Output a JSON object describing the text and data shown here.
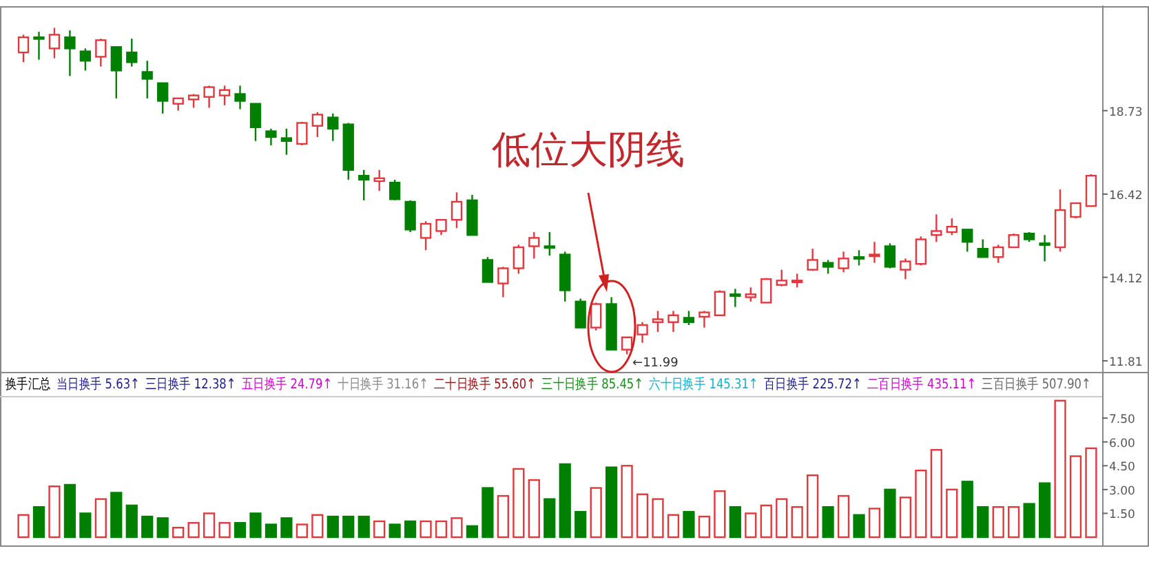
{
  "chart_data": [
    {
      "type": "candlestick",
      "categories": [
        null,
        null,
        null,
        null,
        null,
        null,
        null,
        null,
        null,
        null,
        null,
        null,
        null,
        null,
        null,
        null,
        null,
        null,
        null,
        null,
        null,
        null,
        null,
        null,
        null,
        null,
        null,
        null,
        null,
        null,
        null,
        null,
        null,
        null,
        null,
        null,
        null,
        null,
        null,
        null,
        null,
        null,
        null,
        null,
        null,
        null,
        null,
        null,
        null,
        null,
        null,
        null,
        null,
        null,
        null,
        null,
        null,
        null,
        null,
        null,
        null,
        null,
        null,
        null,
        null,
        null,
        null,
        null,
        null,
        null
      ],
      "ohlc": [
        [
          20.34,
          20.83,
          20.07,
          20.76
        ],
        [
          20.76,
          20.91,
          20.14,
          20.72
        ],
        [
          20.45,
          21.02,
          20.18,
          20.83
        ],
        [
          20.76,
          20.95,
          19.69,
          20.45
        ],
        [
          20.37,
          20.45,
          19.84,
          20.11
        ],
        [
          20.22,
          20.72,
          19.95,
          20.68
        ],
        [
          20.49,
          20.49,
          19.07,
          19.84
        ],
        [
          20.34,
          20.72,
          19.95,
          20.07
        ],
        [
          19.8,
          20.11,
          19.07,
          19.61
        ],
        [
          19.49,
          19.49,
          18.65,
          19.0
        ],
        [
          18.92,
          19.07,
          18.73,
          19.07
        ],
        [
          19.04,
          19.19,
          18.81,
          19.15
        ],
        [
          19.11,
          19.42,
          18.81,
          19.38
        ],
        [
          19.15,
          19.42,
          18.88,
          19.3
        ],
        [
          19.19,
          19.42,
          18.77,
          19.0
        ],
        [
          18.92,
          18.92,
          17.89,
          18.27
        ],
        [
          18.16,
          18.23,
          17.77,
          18.0
        ],
        [
          17.97,
          18.23,
          17.51,
          17.89
        ],
        [
          17.81,
          18.42,
          17.77,
          18.39
        ],
        [
          18.31,
          18.69,
          18.0,
          18.62
        ],
        [
          18.54,
          18.65,
          17.89,
          18.23
        ],
        [
          18.35,
          18.39,
          16.82,
          17.09
        ],
        [
          16.93,
          17.09,
          16.25,
          16.82
        ],
        [
          16.78,
          17.09,
          16.51,
          16.86
        ],
        [
          16.74,
          16.82,
          16.25,
          16.28
        ],
        [
          16.21,
          16.25,
          15.37,
          15.44
        ],
        [
          15.21,
          15.67,
          14.87,
          15.6
        ],
        [
          15.4,
          15.71,
          15.29,
          15.71
        ],
        [
          15.71,
          16.47,
          15.48,
          16.21
        ],
        [
          16.25,
          16.4,
          15.29,
          15.29
        ],
        [
          14.6,
          14.68,
          13.99,
          13.99
        ],
        [
          13.95,
          14.41,
          13.57,
          14.37
        ],
        [
          14.37,
          15.02,
          14.22,
          14.95
        ],
        [
          14.98,
          15.37,
          14.64,
          15.21
        ],
        [
          14.98,
          15.37,
          14.72,
          14.95
        ],
        [
          14.75,
          14.83,
          13.45,
          13.76
        ],
        [
          13.45,
          13.53,
          12.73,
          12.73
        ],
        [
          12.73,
          13.42,
          12.65,
          13.38
        ],
        [
          13.38,
          13.57,
          12.12,
          12.12
        ],
        [
          12.12,
          12.46,
          11.99,
          12.46
        ],
        [
          12.54,
          12.88,
          12.31,
          12.8
        ],
        [
          12.88,
          13.19,
          12.61,
          12.96
        ],
        [
          12.88,
          13.19,
          12.61,
          13.07
        ],
        [
          13.0,
          13.19,
          12.8,
          12.88
        ],
        [
          13.03,
          13.19,
          12.73,
          13.15
        ],
        [
          13.07,
          13.76,
          13.07,
          13.72
        ],
        [
          13.65,
          13.8,
          13.3,
          13.61
        ],
        [
          13.57,
          13.84,
          13.45,
          13.65
        ],
        [
          13.42,
          14.1,
          13.42,
          14.07
        ],
        [
          13.91,
          14.33,
          13.87,
          14.03
        ],
        [
          13.99,
          14.22,
          13.84,
          14.03
        ],
        [
          14.33,
          14.91,
          14.3,
          14.6
        ],
        [
          14.52,
          14.6,
          14.22,
          14.41
        ],
        [
          14.37,
          14.83,
          14.26,
          14.64
        ],
        [
          14.68,
          14.87,
          14.45,
          14.64
        ],
        [
          14.72,
          15.1,
          14.52,
          14.75
        ],
        [
          14.98,
          15.06,
          14.37,
          14.41
        ],
        [
          14.33,
          14.64,
          14.07,
          14.56
        ],
        [
          14.49,
          15.25,
          14.45,
          15.17
        ],
        [
          15.29,
          15.86,
          15.1,
          15.4
        ],
        [
          15.37,
          15.75,
          15.29,
          15.52
        ],
        [
          15.44,
          15.44,
          14.83,
          15.1
        ],
        [
          14.91,
          15.17,
          14.68,
          14.68
        ],
        [
          14.68,
          15.02,
          14.52,
          14.95
        ],
        [
          14.95,
          15.33,
          14.95,
          15.29
        ],
        [
          15.33,
          15.37,
          15.1,
          15.17
        ],
        [
          15.06,
          15.29,
          14.56,
          15.02
        ],
        [
          14.95,
          16.55,
          14.83,
          15.98
        ],
        [
          15.79,
          16.17,
          15.75,
          16.17
        ],
        [
          16.09,
          16.97,
          16.09,
          16.93
        ]
      ],
      "colors": [
        "#e0383c",
        "#008000",
        "#e0383c",
        "#008000",
        "#008000",
        "#e0383c",
        "#008000",
        "#008000",
        "#008000",
        "#008000",
        "#e0383c",
        "#e0383c",
        "#e0383c",
        "#e0383c",
        "#008000",
        "#008000",
        "#008000",
        "#008000",
        "#e0383c",
        "#e0383c",
        "#008000",
        "#008000",
        "#008000",
        "#e0383c",
        "#008000",
        "#008000",
        "#e0383c",
        "#e0383c",
        "#e0383c",
        "#008000",
        "#008000",
        "#e0383c",
        "#e0383c",
        "#e0383c",
        "#008000",
        "#008000",
        "#008000",
        "#e0383c",
        "#008000",
        "#e0383c",
        "#e0383c",
        "#e0383c",
        "#e0383c",
        "#008000",
        "#e0383c",
        "#e0383c",
        "#008000",
        "#e0383c",
        "#e0383c",
        "#e0383c",
        "#e0383c",
        "#e0383c",
        "#008000",
        "#e0383c",
        "#008000",
        "#e0383c",
        "#008000",
        "#e0383c",
        "#e0383c",
        "#e0383c",
        "#e0383c",
        "#008000",
        "#008000",
        "#e0383c",
        "#e0383c",
        "#008000",
        "#008000",
        "#e0383c",
        "#e0383c",
        "#e0383c"
      ],
      "ylim": [
        11.58,
        21.6
      ],
      "yticks": [
        11.81,
        14.12,
        16.42,
        18.73
      ],
      "annotations": [
        "低位大阴线",
        "←11.99"
      ]
    },
    {
      "type": "bar",
      "categories": [
        null,
        null,
        null,
        null,
        null,
        null,
        null,
        null,
        null,
        null,
        null,
        null,
        null,
        null,
        null,
        null,
        null,
        null,
        null,
        null,
        null,
        null,
        null,
        null,
        null,
        null,
        null,
        null,
        null,
        null,
        null,
        null,
        null,
        null,
        null,
        null,
        null,
        null,
        null,
        null,
        null,
        null,
        null,
        null,
        null,
        null,
        null,
        null,
        null,
        null,
        null,
        null,
        null,
        null,
        null,
        null,
        null,
        null,
        null,
        null,
        null,
        null,
        null,
        null,
        null,
        null,
        null,
        null,
        null,
        null
      ],
      "values": [
        1.4,
        1.9,
        3.2,
        3.3,
        1.5,
        2.4,
        2.8,
        2.0,
        1.3,
        1.2,
        0.6,
        0.9,
        1.5,
        0.9,
        0.9,
        1.5,
        0.8,
        1.2,
        0.8,
        1.4,
        1.3,
        1.3,
        1.3,
        1.0,
        0.8,
        1.0,
        1.0,
        1.0,
        1.2,
        0.7,
        3.1,
        2.6,
        4.3,
        3.6,
        2.4,
        4.6,
        1.6,
        3.1,
        4.4,
        4.5,
        2.7,
        2.4,
        1.4,
        1.6,
        1.3,
        2.9,
        1.9,
        1.5,
        2.0,
        2.4,
        1.9,
        3.9,
        1.9,
        2.6,
        1.4,
        1.8,
        3.0,
        2.5,
        4.2,
        5.5,
        3.0,
        3.5,
        1.9,
        1.9,
        1.9,
        2.1,
        3.4,
        8.6,
        5.1,
        5.6
      ],
      "colors": [
        "#e0383c",
        "#008000",
        "#e0383c",
        "#008000",
        "#008000",
        "#e0383c",
        "#008000",
        "#008000",
        "#008000",
        "#008000",
        "#e0383c",
        "#e0383c",
        "#e0383c",
        "#e0383c",
        "#008000",
        "#008000",
        "#008000",
        "#008000",
        "#e0383c",
        "#e0383c",
        "#008000",
        "#008000",
        "#008000",
        "#e0383c",
        "#008000",
        "#008000",
        "#e0383c",
        "#e0383c",
        "#e0383c",
        "#008000",
        "#008000",
        "#e0383c",
        "#e0383c",
        "#e0383c",
        "#008000",
        "#008000",
        "#008000",
        "#e0383c",
        "#008000",
        "#e0383c",
        "#e0383c",
        "#e0383c",
        "#e0383c",
        "#008000",
        "#e0383c",
        "#e0383c",
        "#008000",
        "#e0383c",
        "#e0383c",
        "#e0383c",
        "#e0383c",
        "#e0383c",
        "#008000",
        "#e0383c",
        "#008000",
        "#e0383c",
        "#008000",
        "#e0383c",
        "#e0383c",
        "#e0383c",
        "#e0383c",
        "#008000",
        "#008000",
        "#e0383c",
        "#e0383c",
        "#008000",
        "#008000",
        "#e0383c",
        "#e0383c",
        "#e0383c"
      ],
      "ylim": [
        0,
        8.85
      ],
      "yticks": [
        {
          "value": 1.5,
          "label": "1.50"
        },
        {
          "value": 3,
          "label": "3.00"
        },
        {
          "value": 4.5,
          "label": "4.50"
        },
        {
          "value": 6,
          "label": "6.00"
        },
        {
          "value": 7.5,
          "label": "7.50"
        }
      ],
      "annotations": [
        "换手汇总",
        "当日换手 5.63↑",
        "三日换手 12.38↑",
        "五日换手 24.79↑",
        "十日换手 31.16↑",
        "二十日换手 55.60↑",
        "三十日换手 85.45↑",
        "六十日换手 145.31↑",
        "百日换手 225.72↑",
        "二百日换手 435.11↑",
        "三百日换手 507.90↑"
      ]
    }
  ]
}
